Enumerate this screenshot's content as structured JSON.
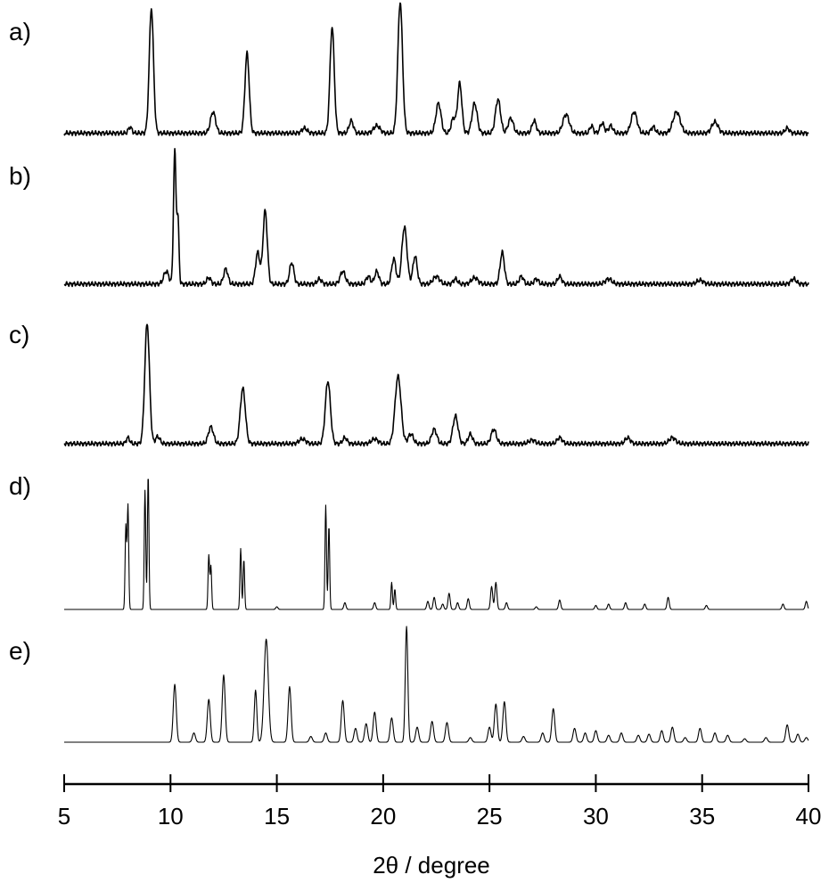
{
  "chart_data": {
    "type": "line",
    "xlabel": "2θ / degree",
    "xlim": [
      5,
      40
    ],
    "xticks": [
      5,
      10,
      15,
      20,
      25,
      30,
      35,
      40
    ],
    "yaxis_shown": false,
    "grid": false,
    "legend": "none",
    "panels": [
      {
        "label": "a)",
        "series": [
          {
            "kind": "experimental",
            "baseline_y": 0.04,
            "peaks": [
              [
                8.1,
                0.05,
                0.08
              ],
              [
                9.1,
                1.0,
                0.1
              ],
              [
                12.0,
                0.17,
                0.12
              ],
              [
                13.6,
                0.64,
                0.1
              ],
              [
                16.3,
                0.04,
                0.12
              ],
              [
                17.6,
                0.85,
                0.1
              ],
              [
                18.5,
                0.1,
                0.1
              ],
              [
                19.7,
                0.06,
                0.15
              ],
              [
                20.8,
                1.05,
                0.11
              ],
              [
                22.6,
                0.24,
                0.12
              ],
              [
                23.3,
                0.12,
                0.1
              ],
              [
                23.6,
                0.4,
                0.1
              ],
              [
                24.3,
                0.24,
                0.12
              ],
              [
                25.4,
                0.27,
                0.12
              ],
              [
                26.0,
                0.12,
                0.12
              ],
              [
                27.1,
                0.1,
                0.1
              ],
              [
                28.6,
                0.15,
                0.15
              ],
              [
                29.8,
                0.06,
                0.08
              ],
              [
                30.3,
                0.08,
                0.1
              ],
              [
                30.7,
                0.06,
                0.1
              ],
              [
                31.8,
                0.17,
                0.14
              ],
              [
                32.7,
                0.05,
                0.1
              ],
              [
                33.8,
                0.17,
                0.17
              ],
              [
                35.6,
                0.09,
                0.15
              ],
              [
                39.0,
                0.04,
                0.1
              ]
            ]
          }
        ]
      },
      {
        "label": "b)",
        "series": [
          {
            "kind": "experimental",
            "baseline_y": 0.03,
            "peaks": [
              [
                9.8,
                0.1,
                0.12
              ],
              [
                10.2,
                1.05,
                0.06
              ],
              [
                10.35,
                0.5,
                0.05
              ],
              [
                11.8,
                0.05,
                0.1
              ],
              [
                12.6,
                0.12,
                0.1
              ],
              [
                14.1,
                0.25,
                0.1
              ],
              [
                14.45,
                0.58,
                0.1
              ],
              [
                15.7,
                0.17,
                0.1
              ],
              [
                17.0,
                0.04,
                0.1
              ],
              [
                18.1,
                0.1,
                0.12
              ],
              [
                19.3,
                0.06,
                0.1
              ],
              [
                19.7,
                0.1,
                0.1
              ],
              [
                20.5,
                0.2,
                0.1
              ],
              [
                21.0,
                0.45,
                0.12
              ],
              [
                21.5,
                0.22,
                0.1
              ],
              [
                22.5,
                0.06,
                0.15
              ],
              [
                23.4,
                0.04,
                0.1
              ],
              [
                24.3,
                0.05,
                0.15
              ],
              [
                25.6,
                0.25,
                0.1
              ],
              [
                26.5,
                0.06,
                0.1
              ],
              [
                27.2,
                0.04,
                0.1
              ],
              [
                28.3,
                0.06,
                0.1
              ],
              [
                30.6,
                0.04,
                0.15
              ],
              [
                34.9,
                0.03,
                0.15
              ],
              [
                39.3,
                0.04,
                0.12
              ]
            ]
          }
        ]
      },
      {
        "label": "c)",
        "series": [
          {
            "kind": "experimental",
            "baseline_y": 0.03,
            "peaks": [
              [
                8.0,
                0.05,
                0.08
              ],
              [
                8.9,
                1.0,
                0.11
              ],
              [
                9.4,
                0.06,
                0.1
              ],
              [
                11.9,
                0.14,
                0.12
              ],
              [
                13.4,
                0.46,
                0.12
              ],
              [
                16.2,
                0.04,
                0.15
              ],
              [
                17.4,
                0.52,
                0.12
              ],
              [
                18.2,
                0.05,
                0.1
              ],
              [
                19.6,
                0.04,
                0.15
              ],
              [
                20.7,
                0.56,
                0.14
              ],
              [
                21.3,
                0.08,
                0.12
              ],
              [
                22.4,
                0.12,
                0.12
              ],
              [
                23.4,
                0.23,
                0.12
              ],
              [
                24.1,
                0.08,
                0.1
              ],
              [
                25.2,
                0.12,
                0.12
              ],
              [
                27.0,
                0.03,
                0.15
              ],
              [
                28.3,
                0.05,
                0.12
              ],
              [
                31.5,
                0.05,
                0.12
              ],
              [
                33.6,
                0.05,
                0.15
              ]
            ]
          }
        ]
      },
      {
        "label": "d)",
        "series": [
          {
            "kind": "calculated",
            "baseline_y": 0.0,
            "peaks": [
              [
                7.9,
                0.62,
                0.035
              ],
              [
                8.0,
                0.77,
                0.035
              ],
              [
                8.8,
                0.88,
                0.035
              ],
              [
                8.95,
                1.0,
                0.035
              ],
              [
                11.8,
                0.4,
                0.035
              ],
              [
                11.9,
                0.32,
                0.035
              ],
              [
                13.3,
                0.45,
                0.035
              ],
              [
                13.45,
                0.37,
                0.035
              ],
              [
                15.0,
                0.02,
                0.05
              ],
              [
                17.3,
                0.77,
                0.035
              ],
              [
                17.45,
                0.62,
                0.035
              ],
              [
                18.2,
                0.05,
                0.05
              ],
              [
                19.6,
                0.05,
                0.05
              ],
              [
                20.4,
                0.2,
                0.035
              ],
              [
                20.55,
                0.15,
                0.035
              ],
              [
                22.1,
                0.06,
                0.05
              ],
              [
                22.4,
                0.09,
                0.05
              ],
              [
                22.8,
                0.04,
                0.05
              ],
              [
                23.1,
                0.12,
                0.05
              ],
              [
                23.5,
                0.05,
                0.05
              ],
              [
                24.0,
                0.08,
                0.05
              ],
              [
                25.1,
                0.17,
                0.05
              ],
              [
                25.3,
                0.2,
                0.05
              ],
              [
                25.8,
                0.05,
                0.05
              ],
              [
                27.2,
                0.02,
                0.05
              ],
              [
                28.3,
                0.07,
                0.05
              ],
              [
                30.0,
                0.03,
                0.05
              ],
              [
                30.6,
                0.04,
                0.05
              ],
              [
                31.4,
                0.05,
                0.05
              ],
              [
                32.3,
                0.04,
                0.05
              ],
              [
                33.4,
                0.09,
                0.05
              ],
              [
                35.2,
                0.03,
                0.05
              ],
              [
                38.8,
                0.04,
                0.05
              ],
              [
                39.9,
                0.06,
                0.05
              ]
            ]
          }
        ]
      },
      {
        "label": "e)",
        "series": [
          {
            "kind": "calculated",
            "baseline_y": 0.0,
            "peaks": [
              [
                10.2,
                0.5,
                0.07
              ],
              [
                11.1,
                0.08,
                0.07
              ],
              [
                11.8,
                0.37,
                0.07
              ],
              [
                12.5,
                0.58,
                0.07
              ],
              [
                14.0,
                0.45,
                0.06
              ],
              [
                14.5,
                0.89,
                0.1
              ],
              [
                15.6,
                0.48,
                0.07
              ],
              [
                16.6,
                0.05,
                0.07
              ],
              [
                17.3,
                0.08,
                0.07
              ],
              [
                18.1,
                0.36,
                0.07
              ],
              [
                18.7,
                0.12,
                0.07
              ],
              [
                19.2,
                0.16,
                0.07
              ],
              [
                19.6,
                0.26,
                0.07
              ],
              [
                20.4,
                0.21,
                0.07
              ],
              [
                21.1,
                1.0,
                0.06
              ],
              [
                21.6,
                0.13,
                0.07
              ],
              [
                22.3,
                0.18,
                0.07
              ],
              [
                23.0,
                0.17,
                0.07
              ],
              [
                24.1,
                0.04,
                0.07
              ],
              [
                25.0,
                0.13,
                0.07
              ],
              [
                25.3,
                0.33,
                0.07
              ],
              [
                25.7,
                0.35,
                0.07
              ],
              [
                26.6,
                0.05,
                0.07
              ],
              [
                27.5,
                0.08,
                0.07
              ],
              [
                28.0,
                0.29,
                0.07
              ],
              [
                29.0,
                0.12,
                0.07
              ],
              [
                29.5,
                0.08,
                0.07
              ],
              [
                30.0,
                0.1,
                0.07
              ],
              [
                30.6,
                0.06,
                0.07
              ],
              [
                31.2,
                0.08,
                0.07
              ],
              [
                32.0,
                0.06,
                0.07
              ],
              [
                32.5,
                0.07,
                0.07
              ],
              [
                33.1,
                0.1,
                0.07
              ],
              [
                33.6,
                0.13,
                0.07
              ],
              [
                34.2,
                0.04,
                0.07
              ],
              [
                34.9,
                0.12,
                0.07
              ],
              [
                35.6,
                0.08,
                0.07
              ],
              [
                36.2,
                0.06,
                0.07
              ],
              [
                37.0,
                0.03,
                0.07
              ],
              [
                38.0,
                0.04,
                0.07
              ],
              [
                39.0,
                0.15,
                0.07
              ],
              [
                39.5,
                0.07,
                0.07
              ],
              [
                39.9,
                0.04,
                0.07
              ]
            ]
          }
        ]
      }
    ]
  }
}
